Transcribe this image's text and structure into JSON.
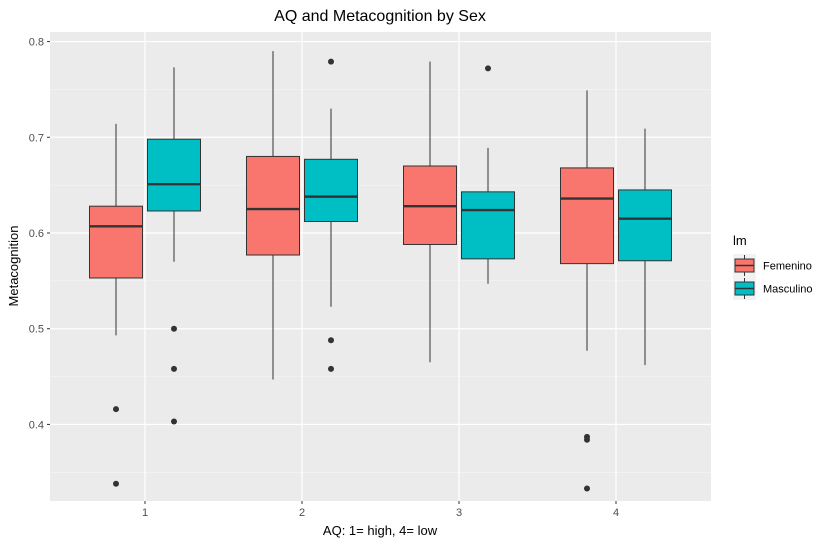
{
  "chart_data": {
    "type": "boxplot",
    "title": "AQ and Metacognition by Sex",
    "xlabel": "AQ: 1= high, 4= low",
    "ylabel": "Metacognition",
    "categories": [
      "1",
      "2",
      "3",
      "4"
    ],
    "ylim": [
      0.32,
      0.81
    ],
    "yticks": [
      0.4,
      0.5,
      0.6,
      0.7,
      0.8
    ],
    "yticklabels": [
      "0.4",
      "0.5",
      "0.6",
      "0.7",
      "0.8"
    ],
    "grid": true,
    "legend": {
      "title": "lm",
      "placement": "right"
    },
    "series": [
      {
        "name": "Femenino",
        "color": "#F8766D",
        "boxes": [
          {
            "category": "1",
            "whisker_low": 0.493,
            "q1": 0.553,
            "median": 0.607,
            "q3": 0.628,
            "whisker_high": 0.714,
            "outliers": [
              0.416,
              0.338
            ]
          },
          {
            "category": "2",
            "whisker_low": 0.447,
            "q1": 0.577,
            "median": 0.625,
            "q3": 0.68,
            "whisker_high": 0.79,
            "outliers": []
          },
          {
            "category": "3",
            "whisker_low": 0.465,
            "q1": 0.588,
            "median": 0.628,
            "q3": 0.67,
            "whisker_high": 0.779,
            "outliers": []
          },
          {
            "category": "4",
            "whisker_low": 0.477,
            "q1": 0.568,
            "median": 0.636,
            "q3": 0.668,
            "whisker_high": 0.749,
            "outliers": [
              0.387,
              0.384,
              0.333
            ]
          }
        ]
      },
      {
        "name": "Masculino",
        "color": "#00BFC4",
        "boxes": [
          {
            "category": "1",
            "whisker_low": 0.57,
            "q1": 0.623,
            "median": 0.651,
            "q3": 0.698,
            "whisker_high": 0.773,
            "outliers": [
              0.5,
              0.458,
              0.403
            ]
          },
          {
            "category": "2",
            "whisker_low": 0.523,
            "q1": 0.612,
            "median": 0.638,
            "q3": 0.677,
            "whisker_high": 0.73,
            "outliers": [
              0.779,
              0.488,
              0.458
            ]
          },
          {
            "category": "3",
            "whisker_low": 0.547,
            "q1": 0.573,
            "median": 0.624,
            "q3": 0.643,
            "whisker_high": 0.689,
            "outliers": [
              0.772
            ]
          },
          {
            "category": "4",
            "whisker_low": 0.462,
            "q1": 0.571,
            "median": 0.615,
            "q3": 0.645,
            "whisker_high": 0.709,
            "outliers": []
          }
        ]
      }
    ]
  }
}
